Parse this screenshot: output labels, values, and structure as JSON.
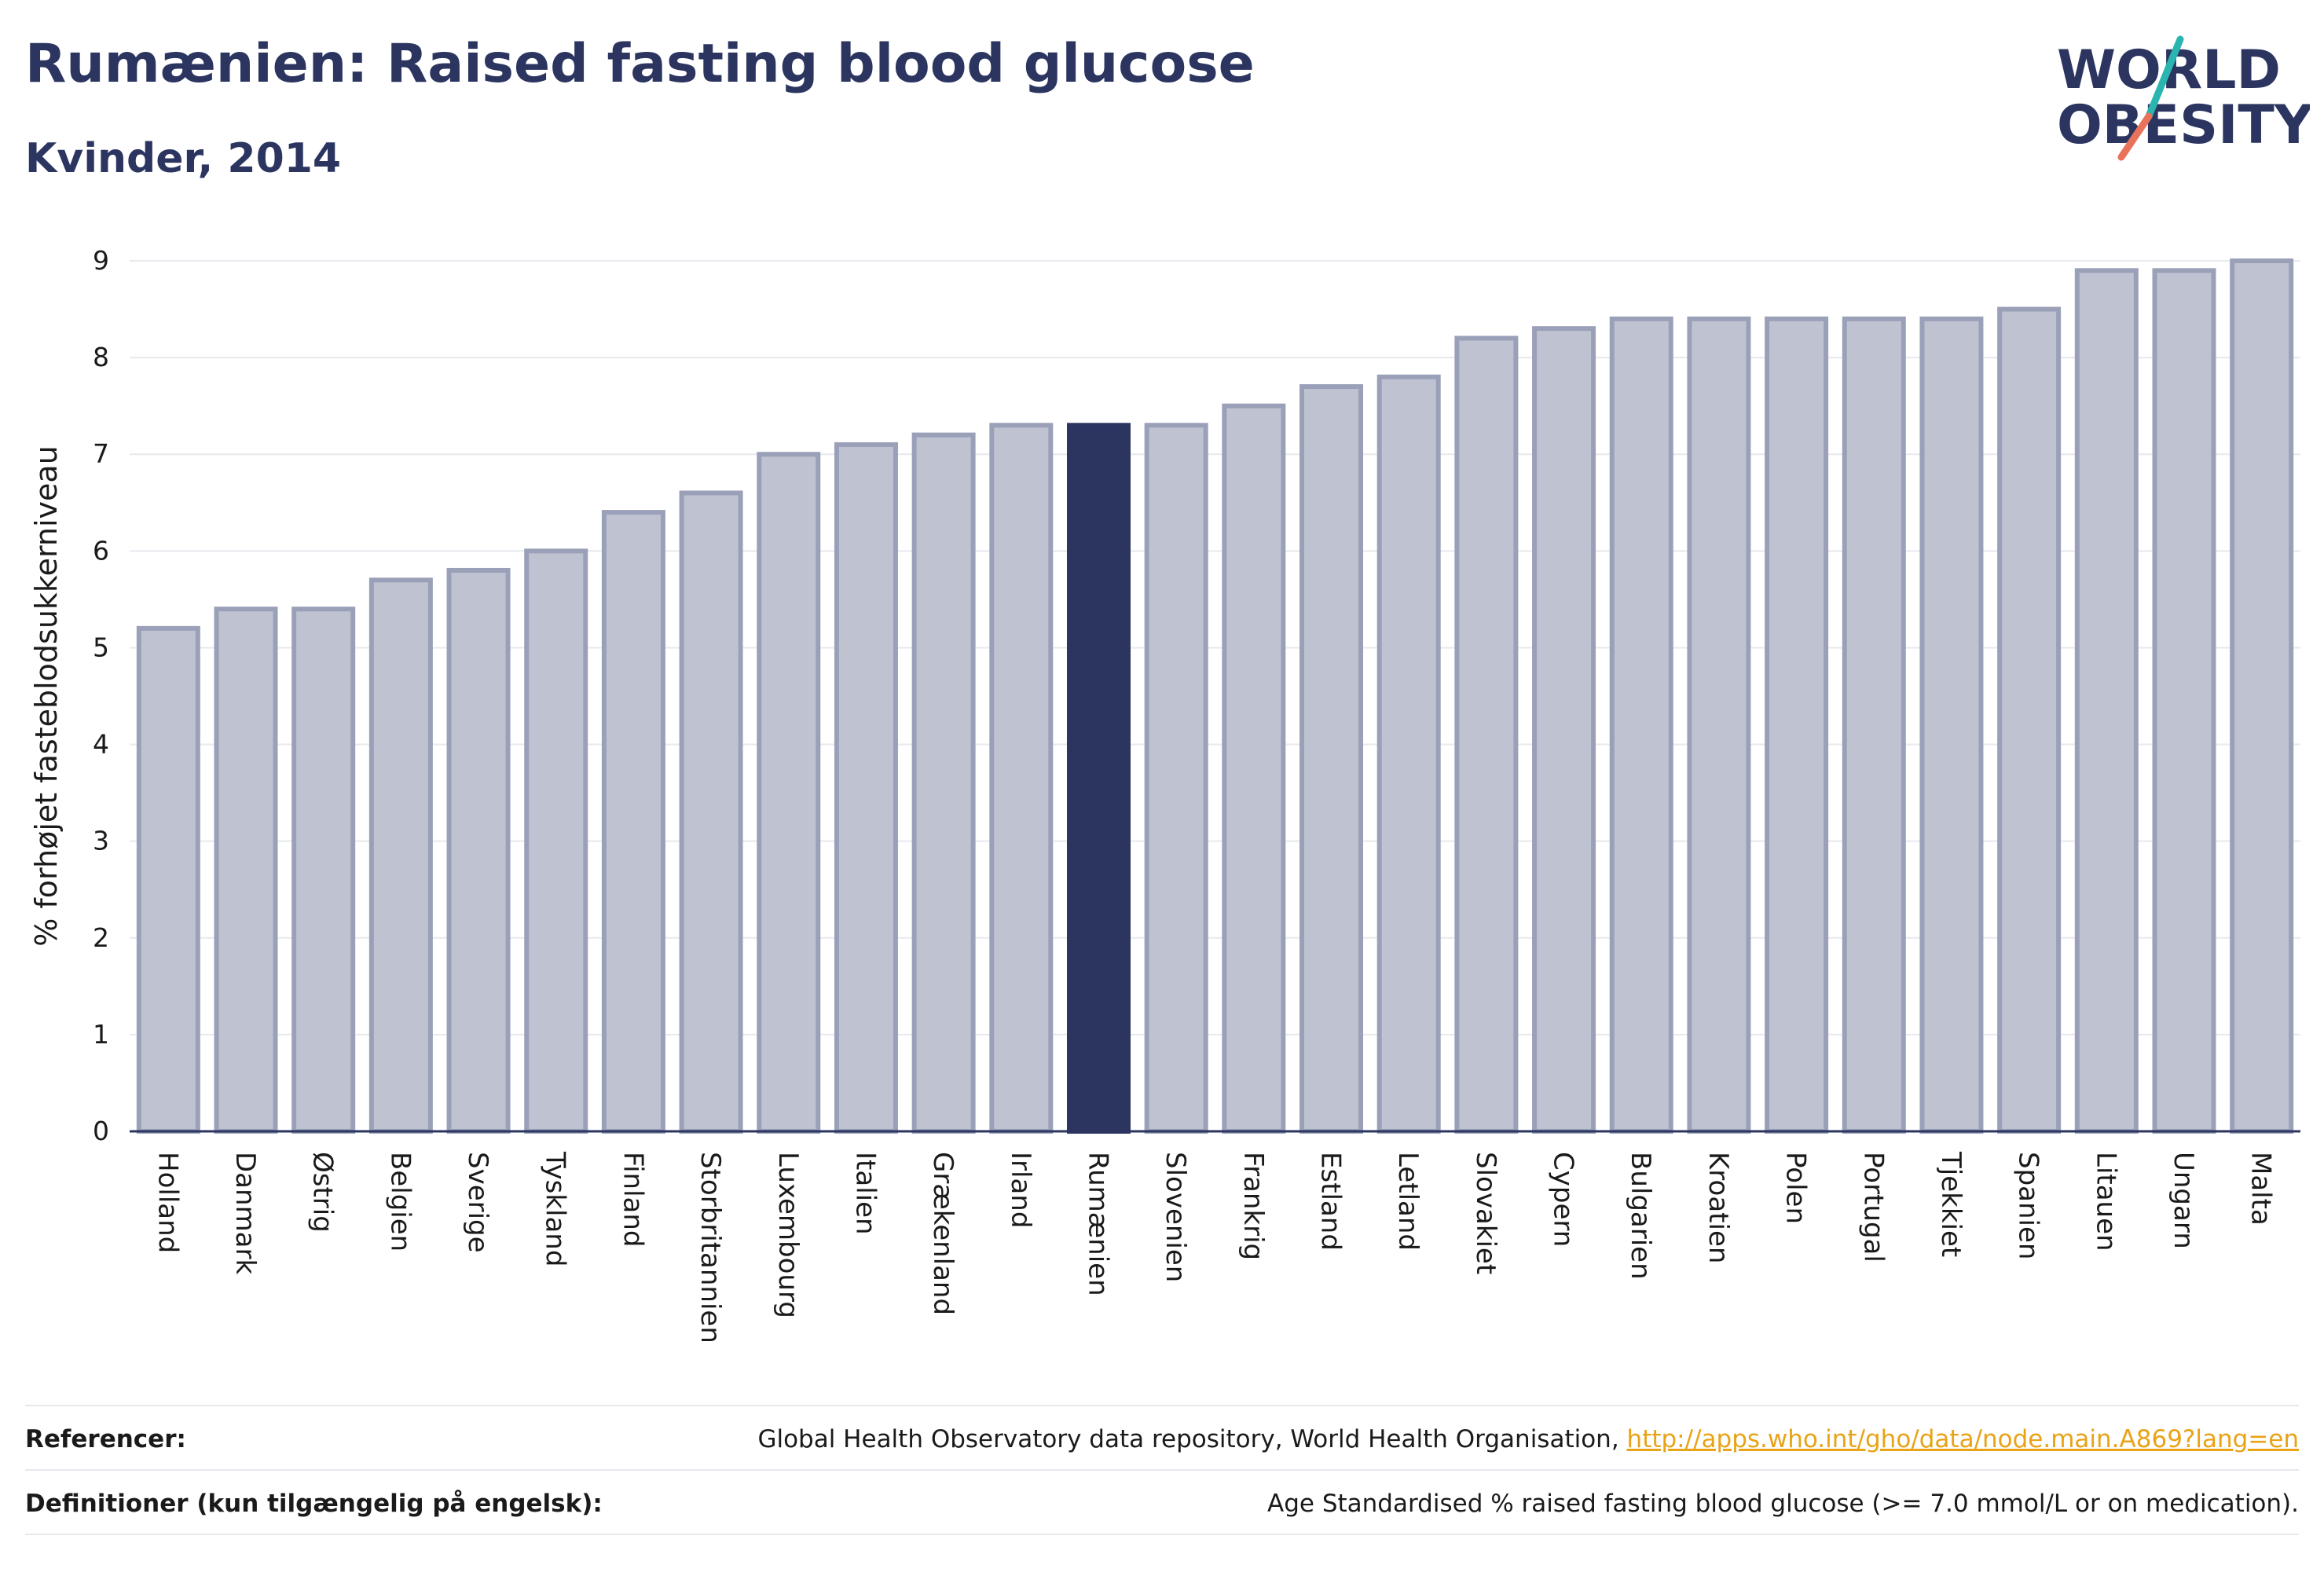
{
  "title": "Rumænien: Raised fasting blood glucose",
  "subtitle": "Kvinder, 2014",
  "logo": {
    "line1": "WORLD",
    "line2": "OBESITY",
    "colors": {
      "text": "#2b3560",
      "slash_teal": "#2bb5b0",
      "slash_coral": "#e8735a"
    }
  },
  "colors": {
    "bar": "#bfc3d1",
    "bar_border": "#9aa0b8",
    "highlight": "#2b3560",
    "axis": "#2b3560",
    "grid": "#e8e9ee"
  },
  "chart_data": {
    "type": "bar",
    "title": "Rumænien: Raised fasting blood glucose",
    "subtitle": "Kvinder, 2014",
    "xlabel": "",
    "ylabel": "% forhøjet fasteblodsukkerniveau",
    "ylim": [
      0,
      9
    ],
    "yticks": [
      0,
      1,
      2,
      3,
      4,
      5,
      6,
      7,
      8,
      9
    ],
    "grid": true,
    "highlight": "Rumænien",
    "categories": [
      "Holland",
      "Danmark",
      "Østrig",
      "Belgien",
      "Sverige",
      "Tyskland",
      "Finland",
      "Storbritannien",
      "Luxembourg",
      "Italien",
      "Grækenland",
      "Irland",
      "Rumænien",
      "Slovenien",
      "Frankrig",
      "Estland",
      "Letland",
      "Slovakiet",
      "Cypern",
      "Bulgarien",
      "Kroatien",
      "Polen",
      "Portugal",
      "Tjekkiet",
      "Spanien",
      "Litauen",
      "Ungarn",
      "Malta"
    ],
    "values": [
      5.2,
      5.4,
      5.4,
      5.7,
      5.8,
      6.0,
      6.4,
      6.6,
      7.0,
      7.1,
      7.2,
      7.3,
      7.3,
      7.3,
      7.5,
      7.7,
      7.8,
      8.2,
      8.3,
      8.4,
      8.4,
      8.4,
      8.4,
      8.4,
      8.5,
      8.9,
      8.9,
      9.0
    ]
  },
  "footer": {
    "references_label": "Referencer:",
    "references_text": "Global Health Observatory data repository, World Health Organisation, ",
    "references_link": "http://apps.who.int/gho/data/node.main.A869?lang=en",
    "definitions_label": "Definitioner (kun tilgængelig på engelsk):",
    "definitions_text": "Age Standardised % raised fasting blood glucose (>= 7.0 mmol/L or on medication)."
  }
}
